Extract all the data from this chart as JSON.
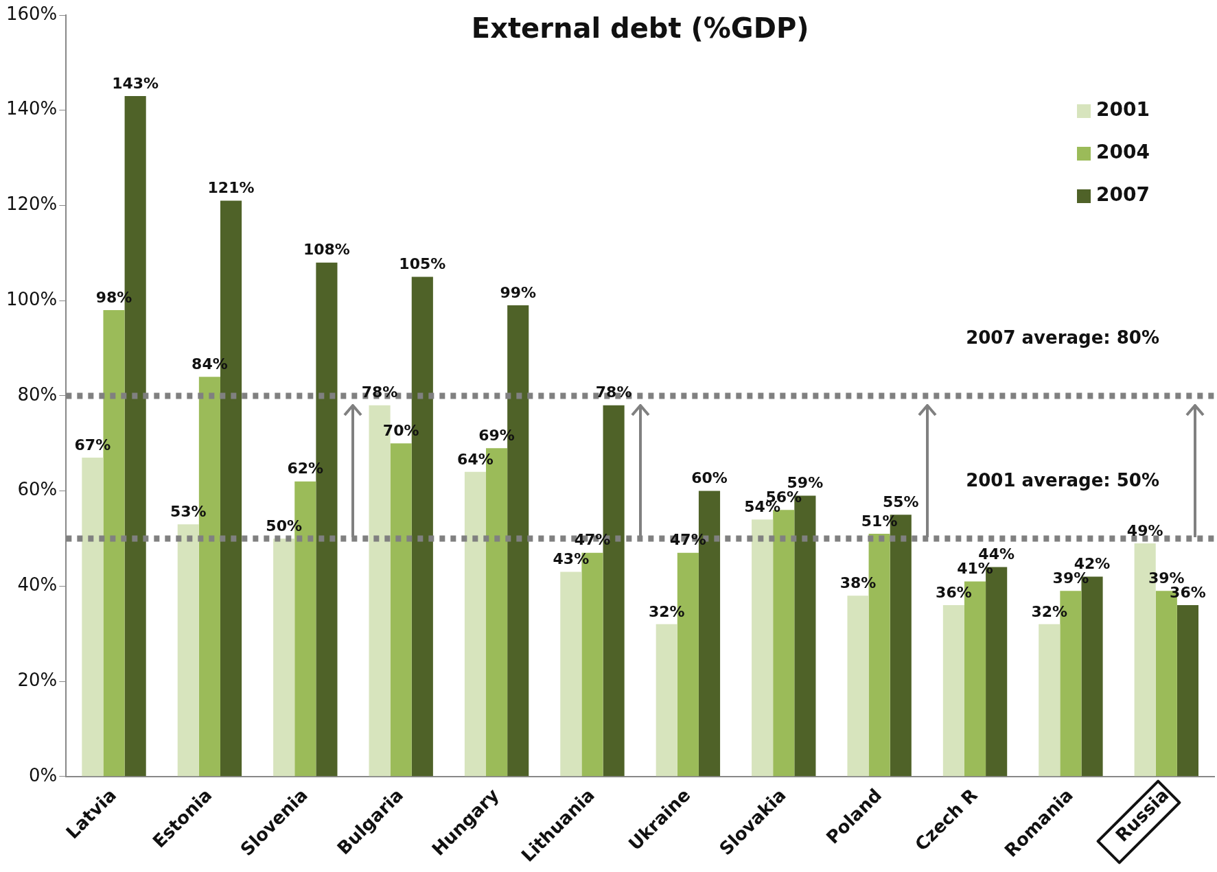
{
  "chart_data": {
    "type": "bar",
    "title": "External debt (%GDP)",
    "categories": [
      "Latvia",
      "Estonia",
      "Slovenia",
      "Bulgaria",
      "Hungary",
      "Lithuania",
      "Ukraine",
      "Slovakia",
      "Poland",
      "Czech R",
      "Romania",
      "Russia"
    ],
    "series": [
      {
        "name": "2001",
        "color": "#d7e4bd",
        "values": [
          67,
          53,
          50,
          78,
          64,
          43,
          32,
          54,
          38,
          36,
          32,
          49
        ],
        "value_labels": [
          "67%",
          "53%",
          "50%",
          "78%",
          "64%",
          "43%",
          "32%",
          "54%",
          "38%",
          "36%",
          "32%",
          "49%"
        ]
      },
      {
        "name": "2004",
        "color": "#9bbb59",
        "values": [
          98,
          84,
          62,
          70,
          69,
          47,
          47,
          56,
          51,
          41,
          39,
          39
        ],
        "value_labels": [
          "98%",
          "84%",
          "62%",
          "70%",
          "69%",
          "47%",
          "47%",
          "56%",
          "51%",
          "41%",
          "39%",
          "39%"
        ]
      },
      {
        "name": "2007",
        "color": "#4f6228",
        "values": [
          143,
          121,
          108,
          105,
          99,
          78,
          60,
          59,
          55,
          44,
          42,
          36
        ],
        "value_labels": [
          "143%",
          "121%",
          "108%",
          "105%",
          "99%",
          "78%",
          "60%",
          "59%",
          "55%",
          "44%",
          "42%",
          "36%"
        ]
      }
    ],
    "ylim": [
      0,
      160
    ],
    "yticks": [
      {
        "value": 0,
        "label": "0%"
      },
      {
        "value": 20,
        "label": "20%"
      },
      {
        "value": 40,
        "label": "40%"
      },
      {
        "value": 60,
        "label": "60%"
      },
      {
        "value": 80,
        "label": "80%"
      },
      {
        "value": 100,
        "label": "100%"
      },
      {
        "value": 120,
        "label": "120%"
      },
      {
        "value": 140,
        "label": "140%"
      },
      {
        "value": 160,
        "label": "160%"
      }
    ],
    "ref_lines": [
      {
        "axis": "y",
        "value": 80,
        "label": "2007 average: 80%",
        "color": "#808080",
        "line_style": "dotted"
      },
      {
        "axis": "y",
        "value": 50,
        "label": "2001 average: 50%",
        "color": "#808080",
        "line_style": "dotted"
      }
    ],
    "grid": false,
    "legend": "top right"
  }
}
